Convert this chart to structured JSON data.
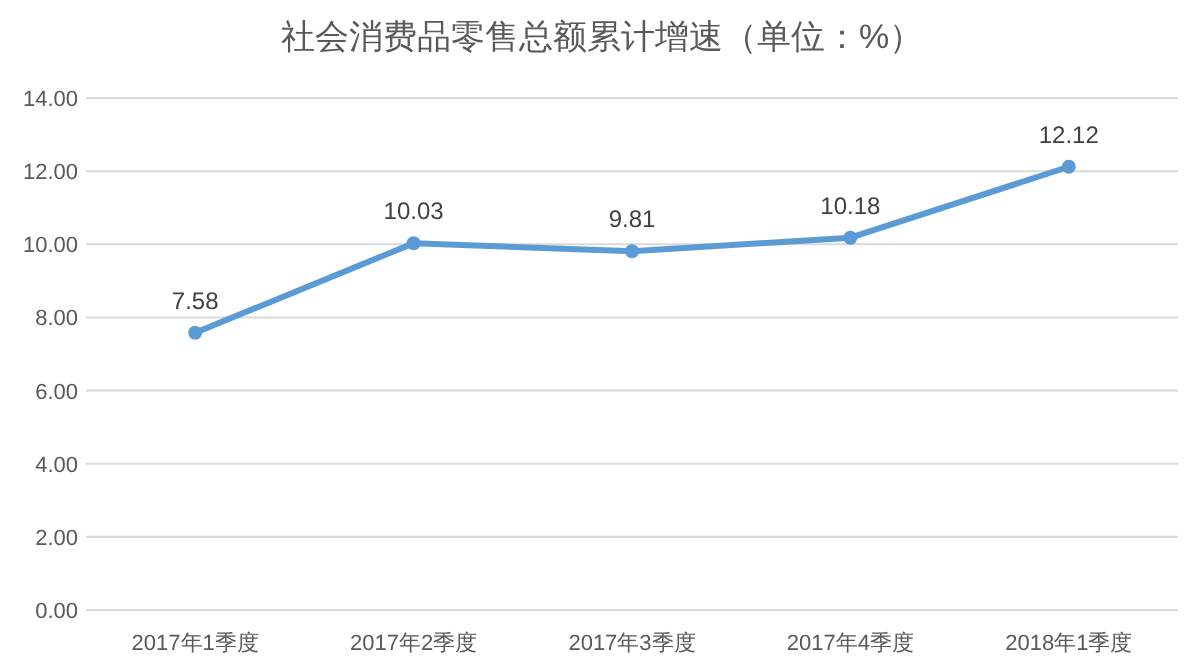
{
  "chart_data": {
    "type": "line",
    "title": "社会消费品零售总额累计增速（单位：%）",
    "categories": [
      "2017年1季度",
      "2017年2季度",
      "2017年3季度",
      "2017年4季度",
      "2018年1季度"
    ],
    "series": [
      {
        "color": "#5b9bd5",
        "values": [
          7.58,
          10.03,
          9.81,
          10.18,
          12.12
        ]
      }
    ],
    "ylim": [
      0,
      14
    ],
    "yticks": [
      {
        "value": 0,
        "label": "0.00"
      },
      {
        "value": 2,
        "label": "2.00"
      },
      {
        "value": 4,
        "label": "4.00"
      },
      {
        "value": 6,
        "label": "6.00"
      },
      {
        "value": 8,
        "label": "8.00"
      },
      {
        "value": 10,
        "label": "10.00"
      },
      {
        "value": 12,
        "label": "12.00"
      },
      {
        "value": 14,
        "label": "14.00"
      }
    ],
    "grid": "y",
    "marker": "circle",
    "line_style": "solid",
    "data_labels": true
  }
}
